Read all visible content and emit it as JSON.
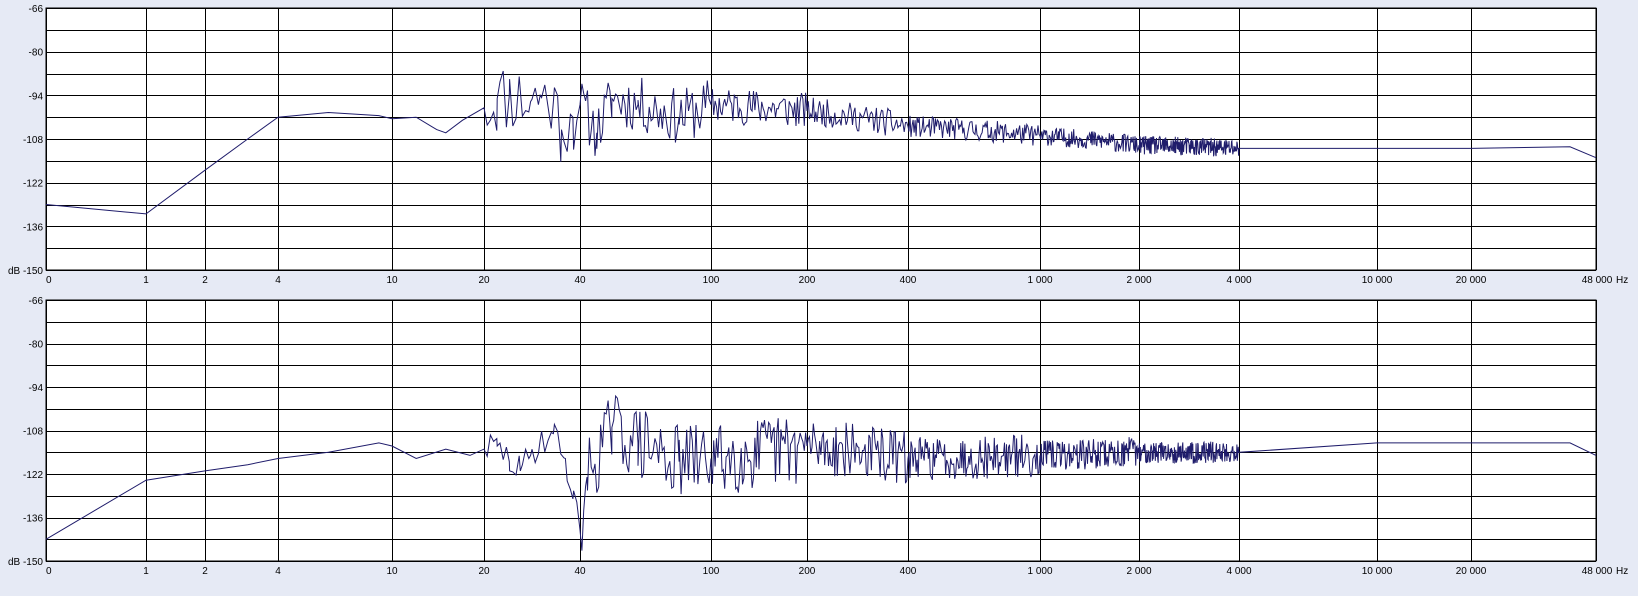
{
  "chart_data": [
    {
      "type": "line",
      "panel": "top",
      "y_unit": "dB",
      "x_unit": "Hz",
      "ylim": [
        -150,
        -66
      ],
      "y_ticks": [
        "-66",
        "-80",
        "-94",
        "-108",
        "-122",
        "-136",
        "dB -150"
      ],
      "x_ticks": [
        "0",
        "1",
        "2",
        "4",
        "10",
        "20",
        "40",
        "100",
        "200",
        "400",
        "1 000",
        "2 000",
        "4 000",
        "10 000",
        "20 000",
        "48 000"
      ],
      "x_tick_values": [
        0,
        1,
        2,
        4,
        10,
        20,
        40,
        100,
        200,
        400,
        1000,
        2000,
        4000,
        10000,
        20000,
        48000
      ],
      "grid": true,
      "noise": {
        "amplitude": [
          6,
          6,
          8,
          9,
          11,
          12,
          9,
          6,
          4.5,
          3.5,
          3,
          3
        ],
        "seed": 11
      },
      "series": [
        {
          "color": "#1f1c6b",
          "points": [
            [
              0,
              -129
            ],
            [
              1,
              -132
            ],
            [
              2,
              -118
            ],
            [
              3,
              -108
            ],
            [
              4,
              -101
            ],
            [
              6,
              -99.5
            ],
            [
              9,
              -100.5
            ],
            [
              10,
              -101.5
            ],
            [
              12,
              -101
            ],
            [
              14,
              -105
            ],
            [
              15,
              -106
            ],
            [
              17,
              -102
            ],
            [
              20,
              -98
            ],
            [
              22,
              -95
            ],
            [
              24,
              -94
            ],
            [
              28,
              -96
            ],
            [
              30,
              -94
            ],
            [
              33,
              -96
            ],
            [
              35,
              -105
            ],
            [
              38,
              -101
            ],
            [
              40,
              -97
            ],
            [
              45,
              -106
            ],
            [
              50,
              -95
            ],
            [
              60,
              -97
            ],
            [
              80,
              -101
            ],
            [
              100,
              -97
            ],
            [
              200,
              -99
            ],
            [
              400,
              -104
            ],
            [
              1000,
              -107
            ],
            [
              2000,
              -110
            ],
            [
              4000,
              -111
            ],
            [
              10000,
              -111
            ],
            [
              20000,
              -111
            ],
            [
              40000,
              -110.5
            ],
            [
              48000,
              -114
            ]
          ]
        }
      ]
    },
    {
      "type": "line",
      "panel": "bottom",
      "y_unit": "dB",
      "x_unit": "Hz",
      "ylim": [
        -150,
        -66
      ],
      "y_ticks": [
        "-66",
        "-80",
        "-94",
        "-108",
        "-122",
        "-136",
        "dB -150"
      ],
      "x_ticks": [
        "0",
        "1",
        "2",
        "4",
        "10",
        "20",
        "40",
        "100",
        "200",
        "400",
        "1 000",
        "2 000",
        "4 000",
        "10 000",
        "20 000",
        "48 000"
      ],
      "x_tick_values": [
        0,
        1,
        2,
        4,
        10,
        20,
        40,
        100,
        200,
        400,
        1000,
        2000,
        4000,
        10000,
        20000,
        48000
      ],
      "grid": true,
      "noise": {
        "amplitude": [
          0,
          0,
          0,
          0,
          2,
          5,
          12,
          12,
          9,
          7,
          5,
          3.5
        ],
        "seed": 29
      },
      "series": [
        {
          "color": "#1f1c6b",
          "points": [
            [
              0,
              -143
            ],
            [
              1,
              -124
            ],
            [
              2,
              -121
            ],
            [
              3,
              -119
            ],
            [
              4,
              -117
            ],
            [
              6,
              -115
            ],
            [
              9,
              -112
            ],
            [
              10,
              -113
            ],
            [
              12,
              -117
            ],
            [
              15,
              -114
            ],
            [
              18,
              -116
            ],
            [
              20,
              -114
            ],
            [
              22,
              -113
            ],
            [
              24,
              -118
            ],
            [
              26,
              -121
            ],
            [
              28,
              -116
            ],
            [
              30,
              -111
            ],
            [
              33,
              -109
            ],
            [
              36,
              -117
            ],
            [
              38,
              -130
            ],
            [
              40,
              -140
            ],
            [
              42,
              -123
            ],
            [
              46,
              -114
            ],
            [
              50,
              -107
            ],
            [
              60,
              -112
            ],
            [
              80,
              -118
            ],
            [
              100,
              -117
            ],
            [
              200,
              -113
            ],
            [
              400,
              -117
            ],
            [
              1000,
              -116
            ],
            [
              2000,
              -115
            ],
            [
              4000,
              -115
            ],
            [
              10000,
              -112
            ],
            [
              20000,
              -112
            ],
            [
              40000,
              -112
            ],
            [
              48000,
              -116
            ]
          ]
        }
      ]
    }
  ]
}
